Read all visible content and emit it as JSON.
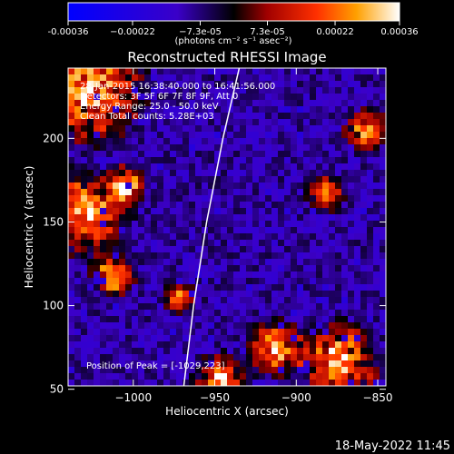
{
  "chart_data": {
    "type": "heatmap",
    "title": "Reconstructed RHESSI Image",
    "xlabel": "Heliocentric X (arcsec)",
    "ylabel": "Heliocentric Y (arcsec)",
    "xlim": [
      -1040,
      -845
    ],
    "ylim": [
      52,
      242
    ],
    "xticks": [
      -1000,
      -950,
      -900,
      -850
    ],
    "yticks": [
      50,
      100,
      150,
      200
    ],
    "xtick_labels": [
      "−1000",
      "−950",
      "−900",
      "−850"
    ],
    "ytick_labels": [
      "50",
      "100",
      "150",
      "200"
    ],
    "colorbar": {
      "ticks": [
        -0.00036,
        -0.00022,
        -7.3e-05,
        7.3e-05,
        0.00022,
        0.00036
      ],
      "tick_labels": [
        "-0.00036",
        "−0.00022",
        "−7.3e-05",
        "7.3e-05",
        "0.00022",
        "0.00036"
      ],
      "unit_label": "(photons cm⁻² s⁻¹ asec⁻²)",
      "range": [
        -0.00036,
        0.00036
      ]
    },
    "info_lines": [
      "28-Jan-2015 16:38:40.000 to 16:41:56.000",
      "Detectors: 3F 5F 6F 7F 8F 9F, Att 0",
      "Energy Range: 25.0 - 50.0 keV",
      "Clean     Total counts: 5.28E+03"
    ],
    "peak_label": "Position of Peak = [-1029,223]",
    "limb_curve": [
      [
        -969,
        52
      ],
      [
        -963,
        100
      ],
      [
        -955,
        150
      ],
      [
        -945,
        200
      ],
      [
        -935,
        242
      ]
    ],
    "grid": false,
    "legend": "none"
  },
  "footer_date": "18-May-2022 11:45"
}
